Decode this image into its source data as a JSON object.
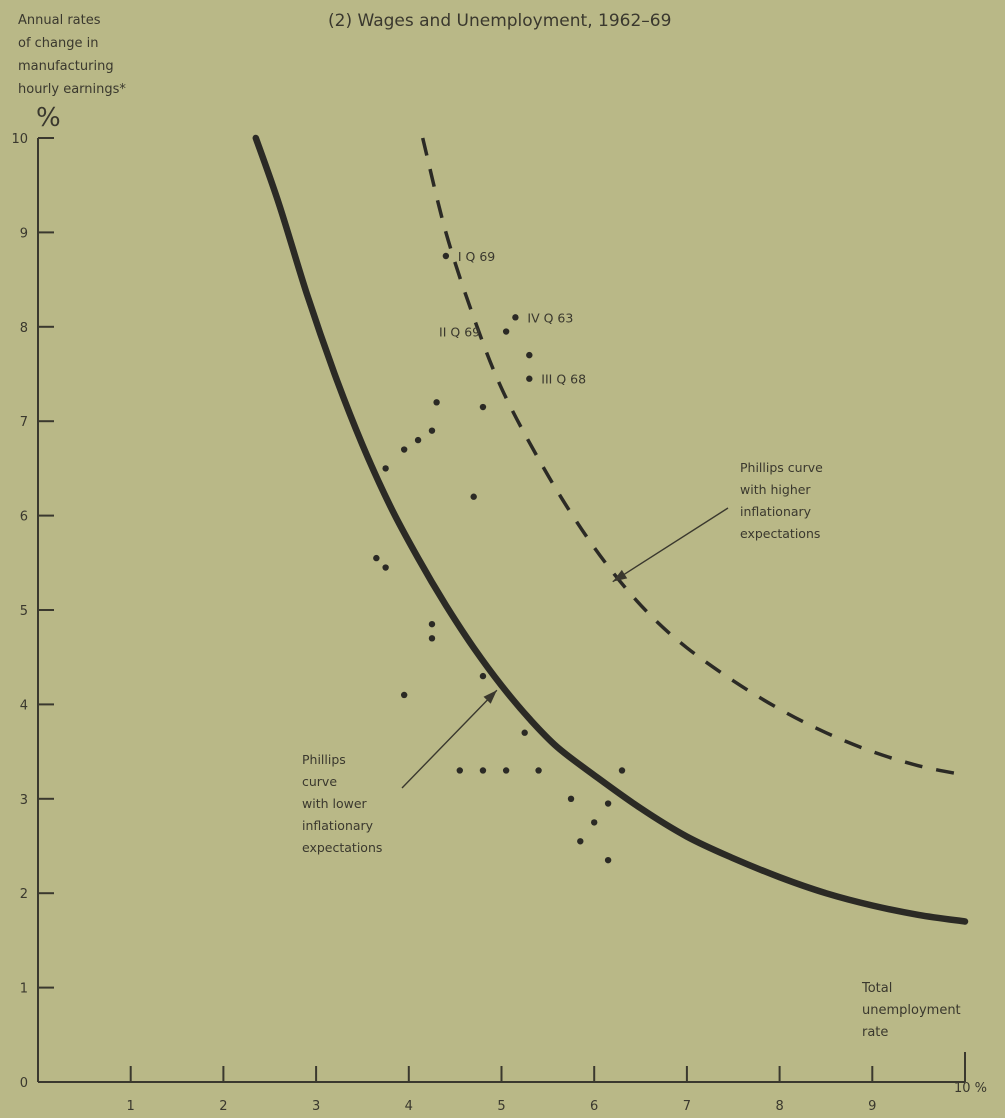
{
  "chart_data": {
    "type": "scatter",
    "title": "(2) Wages and Unemployment, 1962–69",
    "ylabel": [
      "Annual rates",
      "of change in",
      "manufacturing",
      "hourly earnings*"
    ],
    "y_unit": "%",
    "xlabel": [
      "Total",
      "unemployment",
      "rate"
    ],
    "x_unit": "10 %",
    "xlim": [
      0,
      10
    ],
    "ylim": [
      0,
      10
    ],
    "x_ticks": [
      1,
      2,
      3,
      4,
      5,
      6,
      7,
      8,
      9
    ],
    "y_ticks": [
      0,
      1,
      2,
      3,
      4,
      5,
      6,
      7,
      8,
      9,
      10
    ],
    "grid": false,
    "points": [
      {
        "x": 4.4,
        "y": 8.75,
        "label": "I Q 69"
      },
      {
        "x": 5.15,
        "y": 8.1,
        "label": "IV Q 63"
      },
      {
        "x": 5.05,
        "y": 7.95,
        "label": "II Q 69"
      },
      {
        "x": 5.3,
        "y": 7.45,
        "label": "III Q 68"
      },
      {
        "x": 5.3,
        "y": 7.7
      },
      {
        "x": 4.3,
        "y": 7.2
      },
      {
        "x": 4.8,
        "y": 7.15
      },
      {
        "x": 4.25,
        "y": 6.9
      },
      {
        "x": 4.1,
        "y": 6.8
      },
      {
        "x": 3.95,
        "y": 6.7
      },
      {
        "x": 3.75,
        "y": 6.5
      },
      {
        "x": 4.7,
        "y": 6.2
      },
      {
        "x": 3.65,
        "y": 5.55
      },
      {
        "x": 3.75,
        "y": 5.45
      },
      {
        "x": 4.25,
        "y": 4.85
      },
      {
        "x": 4.25,
        "y": 4.7
      },
      {
        "x": 4.8,
        "y": 4.3
      },
      {
        "x": 3.95,
        "y": 4.1
      },
      {
        "x": 5.25,
        "y": 3.7
      },
      {
        "x": 4.55,
        "y": 3.3
      },
      {
        "x": 4.8,
        "y": 3.3
      },
      {
        "x": 5.05,
        "y": 3.3
      },
      {
        "x": 5.4,
        "y": 3.3
      },
      {
        "x": 6.3,
        "y": 3.3
      },
      {
        "x": 5.75,
        "y": 3.0
      },
      {
        "x": 6.15,
        "y": 2.95
      },
      {
        "x": 6.0,
        "y": 2.75
      },
      {
        "x": 5.85,
        "y": 2.55
      },
      {
        "x": 6.15,
        "y": 2.35
      }
    ],
    "curves": [
      {
        "name": "Phillips curve with lower inflationary expectations",
        "style": "solid",
        "color": "#2b2a25",
        "points": [
          [
            2.35,
            10.0
          ],
          [
            2.6,
            9.3
          ],
          [
            2.9,
            8.35
          ],
          [
            3.2,
            7.5
          ],
          [
            3.5,
            6.75
          ],
          [
            3.8,
            6.1
          ],
          [
            4.1,
            5.55
          ],
          [
            4.4,
            5.05
          ],
          [
            4.7,
            4.6
          ],
          [
            5.0,
            4.2
          ],
          [
            5.3,
            3.85
          ],
          [
            5.6,
            3.55
          ],
          [
            6.0,
            3.25
          ],
          [
            6.5,
            2.9
          ],
          [
            7.0,
            2.6
          ],
          [
            7.5,
            2.37
          ],
          [
            8.0,
            2.17
          ],
          [
            8.5,
            2.0
          ],
          [
            9.0,
            1.87
          ],
          [
            9.5,
            1.77
          ],
          [
            10.0,
            1.7
          ]
        ]
      },
      {
        "name": "Phillips curve with higher inflationary expectations",
        "style": "dashed",
        "color": "#2b2a25",
        "points": [
          [
            4.15,
            10.0
          ],
          [
            4.4,
            9.0
          ],
          [
            4.7,
            8.1
          ],
          [
            5.0,
            7.35
          ],
          [
            5.4,
            6.6
          ],
          [
            5.8,
            5.95
          ],
          [
            6.2,
            5.4
          ],
          [
            6.6,
            4.95
          ],
          [
            7.0,
            4.6
          ],
          [
            7.5,
            4.25
          ],
          [
            8.0,
            3.95
          ],
          [
            8.5,
            3.7
          ],
          [
            9.0,
            3.5
          ],
          [
            9.5,
            3.35
          ],
          [
            10.0,
            3.25
          ]
        ]
      }
    ],
    "annotations": [
      {
        "lines": [
          "Phillips curve",
          "with higher",
          "inflationary",
          "expectations"
        ],
        "arrow_to": [
          6.2,
          5.3
        ]
      },
      {
        "lines": [
          "Phillips",
          "curve",
          "with lower",
          "inflationary",
          "expectations"
        ],
        "arrow_to": [
          4.95,
          4.15
        ]
      }
    ]
  }
}
